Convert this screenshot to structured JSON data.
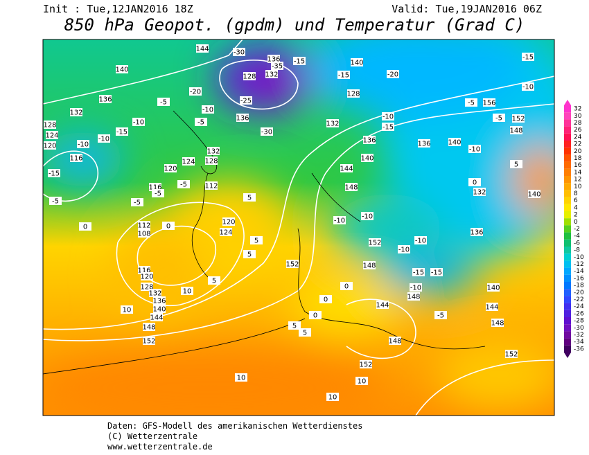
{
  "header": {
    "init": "Init : Tue,12JAN2016 18Z",
    "valid": "Valid: Tue,19JAN2016 06Z",
    "title": "850 hPa Geopot. (gpdm) und Temperatur (Grad C)"
  },
  "map": {
    "contour_labels": [
      "144",
      "140",
      "136",
      "132",
      "128",
      "124",
      "120",
      "116",
      "112",
      "116",
      "120",
      "124",
      "128",
      "132",
      "136",
      "132",
      "128",
      "136",
      "140",
      "128",
      "132",
      "136",
      "140",
      "144",
      "148",
      "152",
      "148",
      "144",
      "148",
      "152",
      "112",
      "108",
      "116",
      "120",
      "128",
      "132",
      "136",
      "140",
      "144",
      "148",
      "152",
      "152",
      "148",
      "152",
      "148",
      "144",
      "140",
      "136",
      "132",
      "140",
      "148",
      "152",
      "156",
      "136",
      "140",
      "120",
      "124",
      "-15",
      "-10",
      "-20",
      "-15",
      "-15",
      "-10",
      "-15",
      "-10",
      "-5",
      "-5",
      "-10",
      "-10",
      "-10",
      "-10",
      "-15",
      "-15",
      "-10",
      "-5",
      "0",
      "5",
      "0",
      "0",
      "0",
      "5",
      "5",
      "10",
      "10",
      "5",
      "10",
      "10",
      "10",
      "0",
      "0",
      "-5",
      "-5",
      "-5",
      "-5",
      "-15",
      "-10",
      "-10",
      "-15",
      "-10",
      "-5",
      "-20",
      "-10",
      "-5",
      "5",
      "5",
      "5",
      "-30",
      "-35",
      "-25",
      "-30"
    ]
  },
  "colorbar": {
    "ticks": [
      32,
      30,
      28,
      26,
      24,
      22,
      20,
      18,
      16,
      14,
      12,
      10,
      8,
      6,
      4,
      2,
      0,
      -2,
      -4,
      -6,
      -8,
      -10,
      -12,
      -14,
      -16,
      -18,
      -20,
      -22,
      -24,
      -26,
      -28,
      -30,
      -32,
      -34,
      -36
    ],
    "colors": [
      "#ff33cc",
      "#ff44bb",
      "#ff3399",
      "#ff2277",
      "#ff1155",
      "#ff2222",
      "#ff3300",
      "#ff5500",
      "#ff6a00",
      "#ff7f00",
      "#ff9400",
      "#ffaa00",
      "#ffbf00",
      "#ffd400",
      "#ffe800",
      "#e6f000",
      "#a0e000",
      "#55d020",
      "#20c040",
      "#10c070",
      "#10c8a0",
      "#00d0d0",
      "#00c0f0",
      "#00a8ff",
      "#0090ff",
      "#0078ff",
      "#2060ff",
      "#3048ff",
      "#4030f0",
      "#5020e0",
      "#6010d0",
      "#7010c0",
      "#700aa0",
      "#600080",
      "#400060"
    ]
  },
  "footer": {
    "line1": "Daten: GFS-Modell des amerikanischen Wetterdienstes",
    "line2": "(C) Wetterzentrale",
    "line3": "www.wetterzentrale.de"
  }
}
